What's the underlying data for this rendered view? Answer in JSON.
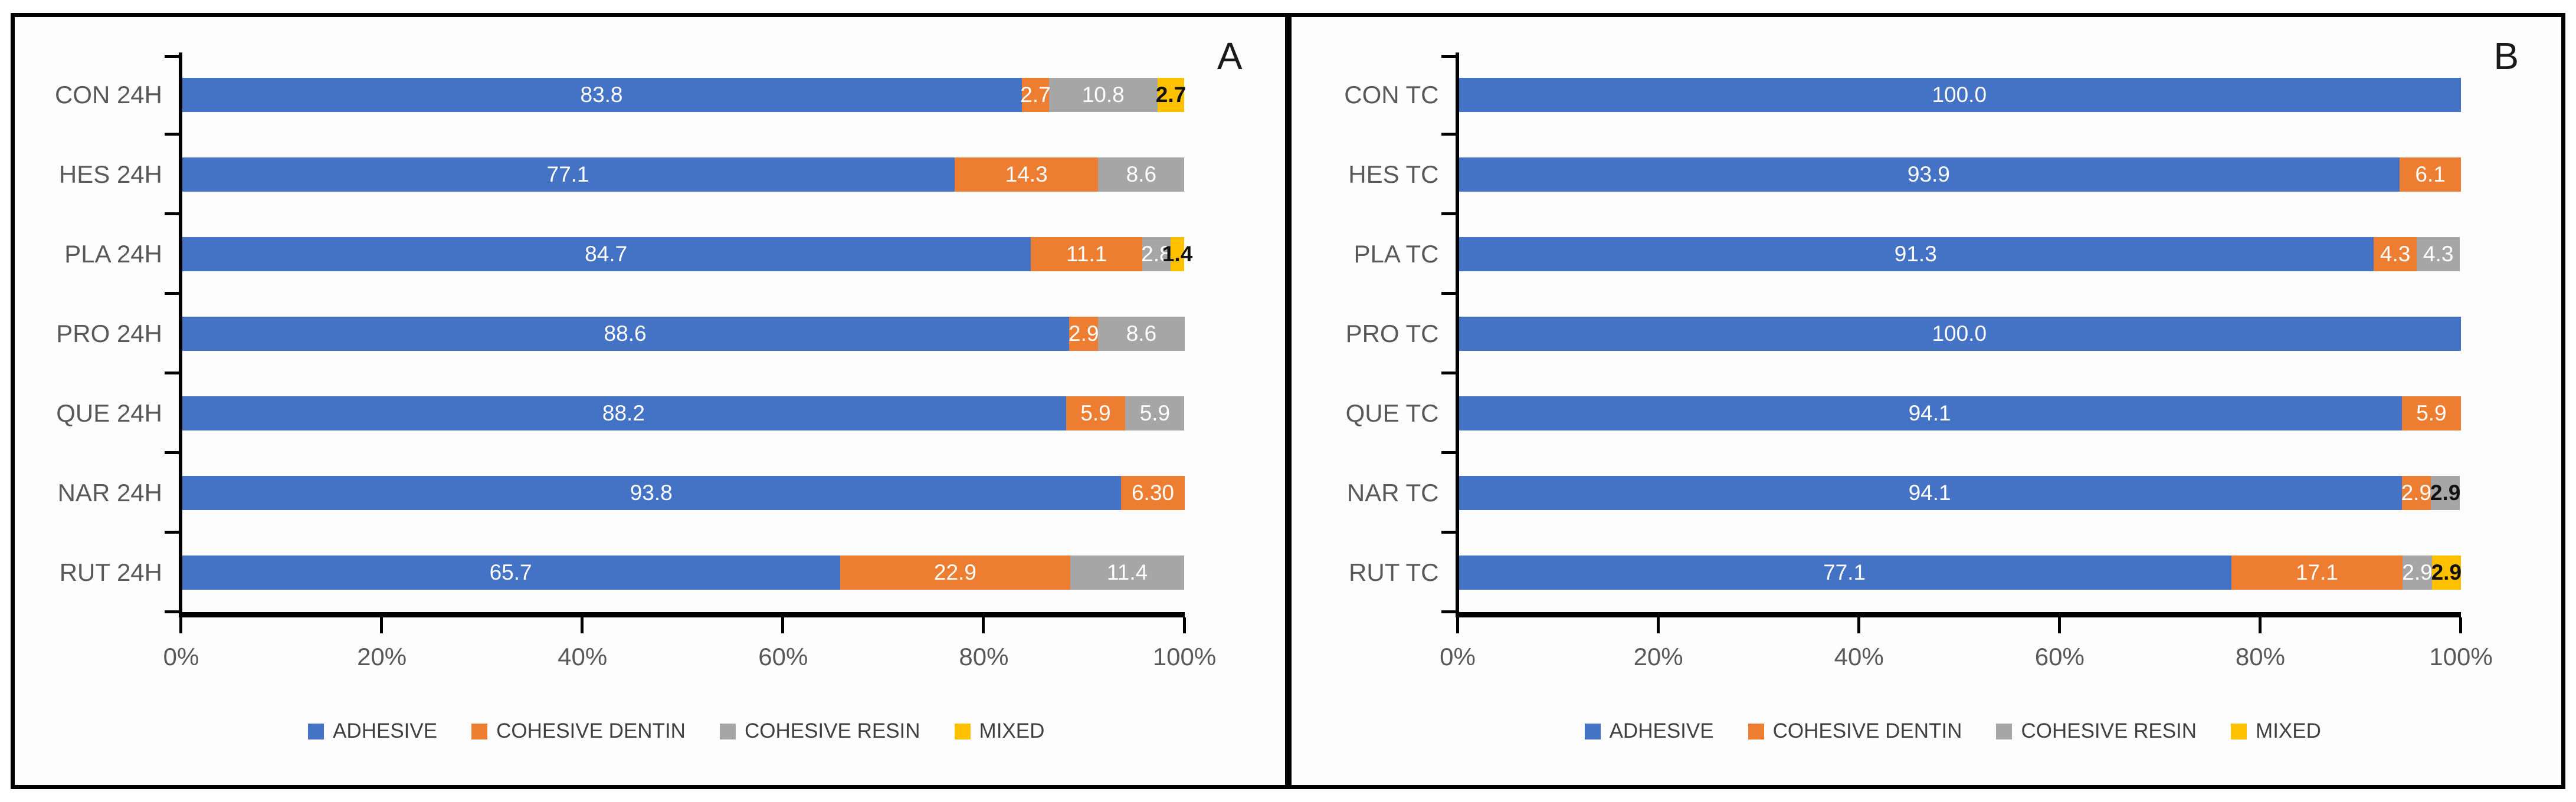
{
  "figure": {
    "description_labels": {
      "panel_a": "A",
      "panel_b": "B"
    },
    "border_color": "#000000",
    "background_color": "#ffffff"
  },
  "colors": {
    "adhesive": "#4472C4",
    "cohesive_dentin": "#ED7D31",
    "cohesive_resin": "#A6A6A6",
    "mixed": "#FFC000",
    "axis_text": "#595959",
    "legend_text": "#404040",
    "axis_line": "#000000",
    "bar_label_light": "#FFFFFF",
    "bar_label_dark": "#111111"
  },
  "chart_data": [
    {
      "type": "bar",
      "orientation": "horizontal",
      "stacked": true,
      "panel_label": "A",
      "title": "",
      "xlabel": "",
      "ylabel": "",
      "xlim": [
        0,
        100
      ],
      "x_tick_labels": [
        "0%",
        "20%",
        "40%",
        "60%",
        "80%",
        "100%"
      ],
      "x_tick_values": [
        0,
        20,
        40,
        60,
        80,
        100
      ],
      "grid": false,
      "legend_position": "bottom",
      "categories": [
        "CON 24H",
        "HES 24H",
        "PLA 24H",
        "PRO 24H",
        "QUE 24H",
        "NAR 24H",
        "RUT 24H"
      ],
      "series": [
        {
          "name": "ADHESIVE",
          "color": "#4472C4",
          "values": [
            83.8,
            77.1,
            84.7,
            88.6,
            88.2,
            93.8,
            65.7
          ],
          "labels": [
            "83.8",
            "77.1",
            "84.7",
            "88.6",
            "88.2",
            "93.8",
            "65.7"
          ],
          "label_dark": [
            false,
            false,
            false,
            false,
            false,
            false,
            false
          ]
        },
        {
          "name": "COHESIVE DENTIN",
          "color": "#ED7D31",
          "values": [
            2.7,
            14.3,
            11.1,
            2.9,
            5.9,
            6.3,
            22.9
          ],
          "labels": [
            "2.7",
            "14.3",
            "11.1",
            "2.9",
            "5.9",
            "6.30",
            "22.9"
          ],
          "label_dark": [
            false,
            false,
            false,
            false,
            false,
            false,
            false
          ]
        },
        {
          "name": "COHESIVE RESIN",
          "color": "#A6A6A6",
          "values": [
            10.8,
            8.6,
            2.8,
            8.6,
            5.9,
            0,
            11.4
          ],
          "labels": [
            "10.8",
            "8.6",
            "2.8",
            "8.6",
            "5.9",
            "",
            "11.4"
          ],
          "label_dark": [
            false,
            false,
            false,
            false,
            false,
            false,
            false
          ]
        },
        {
          "name": "MIXED",
          "color": "#FFC000",
          "values": [
            2.7,
            0,
            1.4,
            0,
            0,
            0,
            0
          ],
          "labels": [
            "2.7",
            "",
            "1.4",
            "",
            "",
            "",
            ""
          ],
          "label_dark": [
            true,
            false,
            true,
            false,
            false,
            false,
            false
          ]
        }
      ]
    },
    {
      "type": "bar",
      "orientation": "horizontal",
      "stacked": true,
      "panel_label": "B",
      "title": "",
      "xlabel": "",
      "ylabel": "",
      "xlim": [
        0,
        100
      ],
      "x_tick_labels": [
        "0%",
        "20%",
        "40%",
        "60%",
        "80%",
        "100%"
      ],
      "x_tick_values": [
        0,
        20,
        40,
        60,
        80,
        100
      ],
      "grid": false,
      "legend_position": "bottom",
      "categories": [
        "CON TC",
        "HES TC",
        "PLA TC",
        "PRO TC",
        "QUE TC",
        "NAR TC",
        "RUT TC"
      ],
      "series": [
        {
          "name": "ADHESIVE",
          "color": "#4472C4",
          "values": [
            100.0,
            93.9,
            91.3,
            100.0,
            94.1,
            94.1,
            77.1
          ],
          "labels": [
            "100.0",
            "93.9",
            "91.3",
            "100.0",
            "94.1",
            "94.1",
            "77.1"
          ],
          "label_dark": [
            false,
            false,
            false,
            false,
            false,
            false,
            false
          ]
        },
        {
          "name": "COHESIVE DENTIN",
          "color": "#ED7D31",
          "values": [
            0,
            6.1,
            4.3,
            0,
            5.9,
            2.9,
            17.1
          ],
          "labels": [
            "",
            "6.1",
            "4.3",
            "",
            "5.9",
            "2.9",
            "17.1"
          ],
          "label_dark": [
            false,
            false,
            false,
            false,
            false,
            false,
            false
          ]
        },
        {
          "name": "COHESIVE RESIN",
          "color": "#A6A6A6",
          "values": [
            0,
            0,
            4.3,
            0,
            0,
            2.9,
            2.9
          ],
          "labels": [
            "",
            "",
            "4.3",
            "",
            "",
            "2.9",
            "2.9"
          ],
          "label_dark": [
            false,
            false,
            false,
            false,
            false,
            true,
            false
          ]
        },
        {
          "name": "MIXED",
          "color": "#FFC000",
          "values": [
            0,
            0,
            0,
            0,
            0,
            0,
            2.9
          ],
          "labels": [
            "",
            "",
            "",
            "",
            "",
            "",
            "2.9"
          ],
          "label_dark": [
            false,
            false,
            false,
            false,
            false,
            false,
            true
          ]
        }
      ]
    }
  ]
}
